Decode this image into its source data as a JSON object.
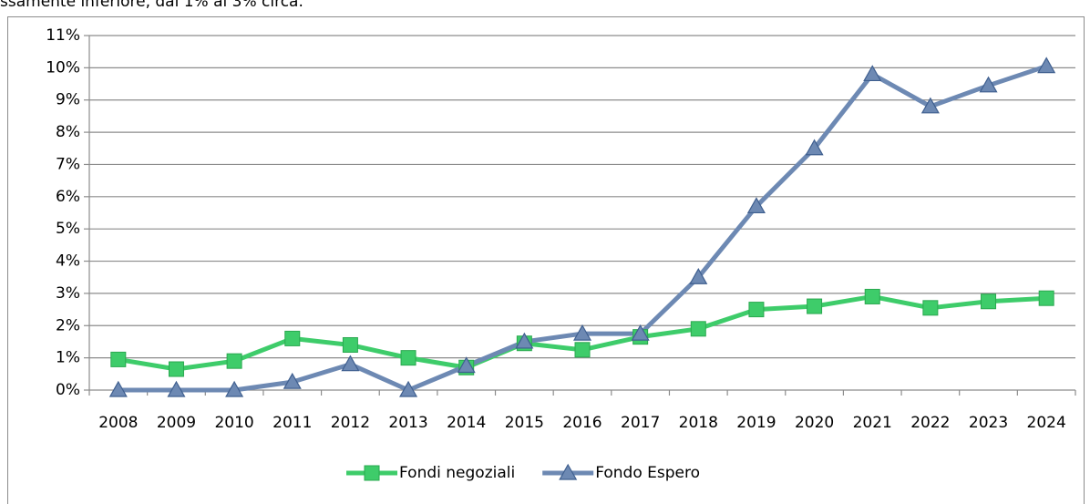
{
  "chart_data": {
    "type": "line",
    "annotation": "ssamente inferiore, dal 1% al 3% circa.",
    "categories": [
      "2008",
      "2009",
      "2010",
      "2011",
      "2012",
      "2013",
      "2014",
      "2015",
      "2016",
      "2017",
      "2018",
      "2019",
      "2020",
      "2021",
      "2022",
      "2023",
      "2024"
    ],
    "series": [
      {
        "name": "Fondi negoziali",
        "color": "#3ecc6a",
        "marker": "square",
        "values": [
          0.95,
          0.65,
          0.9,
          1.6,
          1.4,
          1.0,
          0.7,
          1.45,
          1.25,
          1.65,
          1.9,
          2.5,
          2.6,
          2.9,
          2.55,
          2.75,
          2.85
        ]
      },
      {
        "name": "Fondo Espero",
        "color": "#6d89b3",
        "marker": "triangle",
        "values": [
          0,
          0,
          0,
          0.25,
          0.8,
          0,
          0.75,
          1.5,
          1.75,
          1.75,
          3.5,
          5.7,
          7.5,
          9.8,
          8.8,
          9.45,
          10.05
        ]
      }
    ],
    "ylim": [
      0,
      11
    ],
    "yticks": [
      {
        "value": 0,
        "label": "0%"
      },
      {
        "value": 1,
        "label": "1%"
      },
      {
        "value": 2,
        "label": "2%"
      },
      {
        "value": 3,
        "label": "3%"
      },
      {
        "value": 4,
        "label": "4%"
      },
      {
        "value": 5,
        "label": "5%"
      },
      {
        "value": 6,
        "label": "6%"
      },
      {
        "value": 7,
        "label": "7%"
      },
      {
        "value": 8,
        "label": "8%"
      },
      {
        "value": 9,
        "label": "9%"
      },
      {
        "value": 10,
        "label": "10%"
      },
      {
        "value": 11,
        "label": "11%"
      }
    ],
    "grid": true,
    "legend": "bottom"
  }
}
